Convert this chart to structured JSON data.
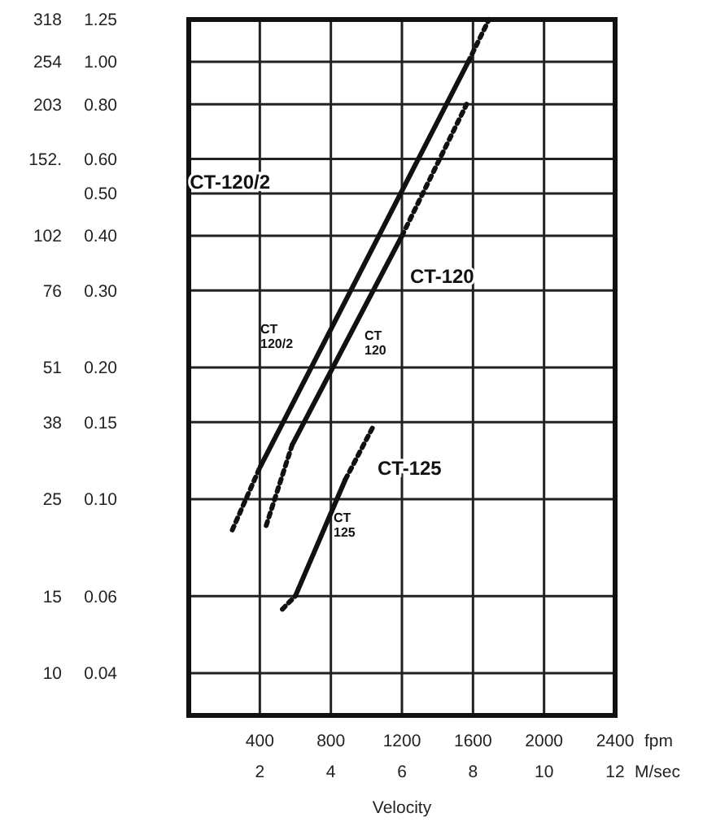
{
  "chart_data": {
    "type": "line",
    "xlabel": "Velocity",
    "x2label": "M/sec",
    "xlim": [
      0,
      2400
    ],
    "xticks": [
      400,
      800,
      1200,
      1600,
      2000,
      2400
    ],
    "x2lim": [
      0,
      12
    ],
    "x2ticks": [
      2,
      4,
      6,
      8,
      10,
      12
    ],
    "log": "y",
    "ylim": [
      0.032,
      1.25
    ],
    "yticks": [
      {
        "value": 1.25,
        "label": "1.25"
      },
      {
        "value": 1,
        "label": "1.00"
      },
      {
        "value": 0.8,
        "label": "0.80"
      },
      {
        "value": 0.6,
        "label": "0.60"
      },
      {
        "value": 0.5,
        "label": "0.50"
      },
      {
        "value": 0.4,
        "label": "0.40"
      },
      {
        "value": 0.3,
        "label": "0.30"
      },
      {
        "value": 0.2,
        "label": "0.20"
      },
      {
        "value": 0.15,
        "label": "0.15"
      },
      {
        "value": 0.1,
        "label": "0.10"
      },
      {
        "value": 0.06,
        "label": "0.06"
      },
      {
        "value": 0.04,
        "label": "0.04"
      }
    ],
    "grid": true,
    "marker": "none",
    "series": [
      {
        "color": "#111111",
        "line_style": "solid",
        "x": [
          400,
          1573
        ],
        "values": [
          0.118,
          1.0
        ]
      },
      {
        "color": "#111111",
        "line_style": "dotted",
        "x": [
          245,
          400
        ],
        "values": [
          0.085,
          0.118
        ]
      },
      {
        "color": "#111111",
        "line_style": "dotted",
        "x": [
          1573,
          1690
        ],
        "values": [
          1.0,
          1.25
        ]
      },
      {
        "color": "#111111",
        "line_style": "solid",
        "x": [
          582,
          1200
        ],
        "values": [
          0.133,
          0.4
        ]
      },
      {
        "color": "#111111",
        "line_style": "dotted",
        "x": [
          436,
          582
        ],
        "values": [
          0.087,
          0.133
        ]
      },
      {
        "color": "#111111",
        "line_style": "dotted",
        "x": [
          1200,
          1564
        ],
        "values": [
          0.4,
          0.8
        ]
      },
      {
        "color": "#111111",
        "line_style": "solid",
        "x": [
          600,
          882
        ],
        "values": [
          0.06,
          0.111
        ]
      },
      {
        "color": "#111111",
        "line_style": "dotted",
        "x": [
          527,
          600
        ],
        "values": [
          0.056,
          0.06
        ]
      },
      {
        "color": "#111111",
        "line_style": "dotted",
        "x": [
          882,
          1036
        ],
        "values": [
          0.111,
          0.146
        ]
      }
    ],
    "annotations": [
      "fpm",
      "CT-120/2",
      "CT-120",
      "CT-125",
      "CT\n120/2",
      "CT\n120",
      "CT\n125",
      "318",
      "254",
      "203",
      "152.",
      "102",
      "76",
      "51",
      "38",
      "25",
      "15",
      "10"
    ]
  }
}
